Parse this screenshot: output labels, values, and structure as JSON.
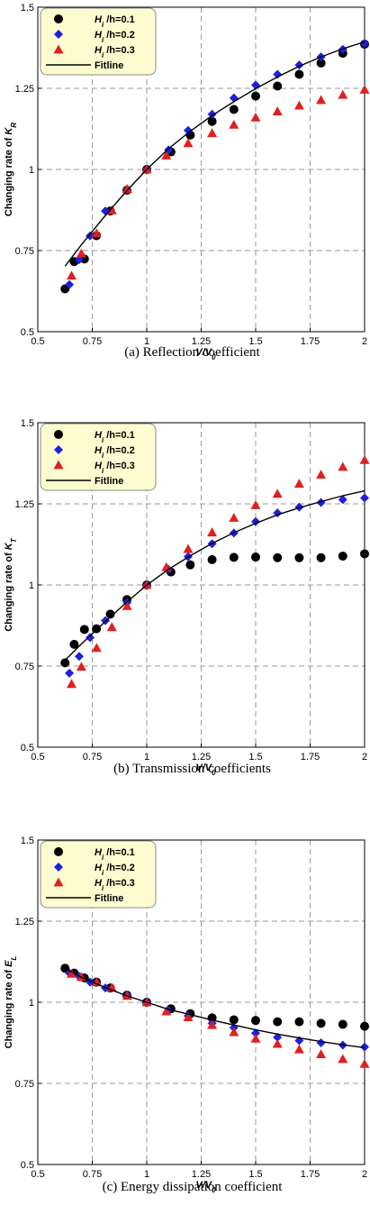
{
  "chart_data": [
    {
      "type": "scatter",
      "caption": "(a)  Reflection  coefficient",
      "ylabel": "Changing rate of K_R",
      "ylabel_main": "Changing rate of ",
      "ylabel_sym": "K",
      "ylabel_sub": "R",
      "xlabel_main": "V/V",
      "xlabel_sub": "0",
      "xlim": [
        0.5,
        2
      ],
      "ylim": [
        0.5,
        1.5
      ],
      "x_ticks": [
        "0.5",
        "0.75",
        "1",
        "1.25",
        "1.5",
        "1.75",
        "2"
      ],
      "y_ticks": [
        "0.5",
        "0.75",
        "1",
        "1.25",
        "1.5"
      ],
      "grid": true,
      "legend_position": "top-left",
      "legend": [
        {
          "label_pre": "H",
          "label_sub": "i",
          "label_post": " /h=0.1",
          "marker": "circle",
          "color": "#000000"
        },
        {
          "label_pre": "H",
          "label_sub": "i",
          "label_post": " /h=0.2",
          "marker": "diamond",
          "color": "#1f1fe0"
        },
        {
          "label_pre": "H",
          "label_sub": "i",
          "label_post": " /h=0.3",
          "marker": "triangle",
          "color": "#e02020"
        },
        {
          "label_pre": "Fitline",
          "label_sub": "",
          "label_post": "",
          "marker": "line",
          "color": "#000000"
        }
      ],
      "series": [
        {
          "name": "Hi/h=0.1",
          "marker": "circle",
          "color": "#000000",
          "x": [
            0.625,
            0.667,
            0.714,
            0.769,
            0.833,
            0.909,
            1.0,
            1.111,
            1.2,
            1.3,
            1.4,
            1.5,
            1.6,
            1.7,
            1.8,
            1.9,
            2.0
          ],
          "y": [
            0.632,
            0.716,
            0.724,
            0.796,
            0.872,
            0.936,
            1.0,
            1.054,
            1.106,
            1.148,
            1.185,
            1.226,
            1.257,
            1.293,
            1.328,
            1.358,
            1.386
          ]
        },
        {
          "name": "Hi/h=0.2",
          "marker": "diamond",
          "color": "#1f1fe0",
          "x": [
            0.645,
            0.69,
            0.74,
            0.81,
            0.91,
            1.0,
            1.1,
            1.19,
            1.3,
            1.4,
            1.5,
            1.6,
            1.7,
            1.8,
            1.9,
            2.0
          ],
          "y": [
            0.645,
            0.722,
            0.795,
            0.872,
            0.938,
            1.0,
            1.06,
            1.12,
            1.17,
            1.22,
            1.26,
            1.293,
            1.322,
            1.347,
            1.37,
            1.388
          ]
        },
        {
          "name": "Hi/h=0.3",
          "marker": "triangle",
          "color": "#e02020",
          "x": [
            0.655,
            0.7,
            0.77,
            0.84,
            0.91,
            1.0,
            1.09,
            1.19,
            1.3,
            1.4,
            1.5,
            1.6,
            1.7,
            1.8,
            1.9,
            2.0
          ],
          "y": [
            0.673,
            0.741,
            0.803,
            0.874,
            0.94,
            1.0,
            1.043,
            1.081,
            1.112,
            1.138,
            1.16,
            1.179,
            1.197,
            1.214,
            1.23,
            1.246
          ]
        },
        {
          "name": "Fitline",
          "marker": "line",
          "color": "#000000",
          "x": [
            0.625,
            0.7,
            0.8,
            0.9,
            1.0,
            1.1,
            1.2,
            1.3,
            1.4,
            1.5,
            1.6,
            1.7,
            1.8,
            1.9,
            2.0
          ],
          "y": [
            0.702,
            0.768,
            0.85,
            0.928,
            1.0,
            1.064,
            1.118,
            1.166,
            1.209,
            1.249,
            1.285,
            1.318,
            1.347,
            1.372,
            1.393
          ]
        }
      ]
    },
    {
      "type": "scatter",
      "caption": "(b)  Transmission  coefficients",
      "ylabel": "Changing rate of K_T",
      "ylabel_main": "Changing rate of ",
      "ylabel_sym": "K",
      "ylabel_sub": "T",
      "xlabel_main": "V/V",
      "xlabel_sub": "0",
      "xlim": [
        0.5,
        2
      ],
      "ylim": [
        0.5,
        1.5
      ],
      "x_ticks": [
        "0.5",
        "0.75",
        "1",
        "1.25",
        "1.5",
        "1.75",
        "2"
      ],
      "y_ticks": [
        "0.5",
        "0.75",
        "1",
        "1.25",
        "1.5"
      ],
      "grid": true,
      "legend_position": "top-left",
      "legend": [
        {
          "label_pre": "H",
          "label_sub": "i",
          "label_post": " /h=0.1",
          "marker": "circle",
          "color": "#000000"
        },
        {
          "label_pre": "H",
          "label_sub": "i",
          "label_post": " /h=0.2",
          "marker": "diamond",
          "color": "#1f1fe0"
        },
        {
          "label_pre": "H",
          "label_sub": "i",
          "label_post": " /h=0.3",
          "marker": "triangle",
          "color": "#e02020"
        },
        {
          "label_pre": "Fitline",
          "label_sub": "",
          "label_post": "",
          "marker": "line",
          "color": "#000000"
        }
      ],
      "series": [
        {
          "name": "Hi/h=0.1",
          "marker": "circle",
          "color": "#000000",
          "x": [
            0.625,
            0.667,
            0.714,
            0.769,
            0.833,
            0.909,
            1.0,
            1.111,
            1.2,
            1.3,
            1.4,
            1.5,
            1.6,
            1.7,
            1.8,
            1.9,
            2.0
          ],
          "y": [
            0.76,
            0.817,
            0.863,
            0.865,
            0.91,
            0.955,
            1.0,
            1.04,
            1.062,
            1.078,
            1.085,
            1.086,
            1.084,
            1.084,
            1.084,
            1.089,
            1.096
          ]
        },
        {
          "name": "Hi/h=0.2",
          "marker": "diamond",
          "color": "#1f1fe0",
          "x": [
            0.645,
            0.69,
            0.74,
            0.81,
            0.91,
            1.0,
            1.1,
            1.19,
            1.3,
            1.4,
            1.5,
            1.6,
            1.7,
            1.8,
            1.9,
            2.0
          ],
          "y": [
            0.728,
            0.78,
            0.838,
            0.89,
            0.946,
            1.0,
            1.048,
            1.087,
            1.127,
            1.16,
            1.195,
            1.222,
            1.24,
            1.254,
            1.263,
            1.268
          ]
        },
        {
          "name": "Hi/h=0.3",
          "marker": "triangle",
          "color": "#e02020",
          "x": [
            0.655,
            0.7,
            0.77,
            0.84,
            0.91,
            1.0,
            1.09,
            1.19,
            1.3,
            1.4,
            1.5,
            1.6,
            1.7,
            1.8,
            1.9,
            2.0
          ],
          "y": [
            0.695,
            0.748,
            0.806,
            0.87,
            0.935,
            1.0,
            1.055,
            1.111,
            1.162,
            1.207,
            1.246,
            1.281,
            1.312,
            1.34,
            1.364,
            1.385
          ]
        },
        {
          "name": "Fitline",
          "marker": "line",
          "color": "#000000",
          "x": [
            0.625,
            0.7,
            0.8,
            0.9,
            1.0,
            1.1,
            1.2,
            1.3,
            1.4,
            1.5,
            1.6,
            1.7,
            1.8,
            1.9,
            2.0
          ],
          "y": [
            0.768,
            0.818,
            0.881,
            0.942,
            1.0,
            1.048,
            1.09,
            1.128,
            1.161,
            1.19,
            1.216,
            1.238,
            1.257,
            1.275,
            1.29
          ]
        }
      ]
    },
    {
      "type": "scatter",
      "caption": "(c)  Energy  dissipation  coefficient",
      "ylabel": "Changing rate of E_L",
      "ylabel_main": "Changing rate of ",
      "ylabel_sym": "E",
      "ylabel_sub": "L",
      "xlabel_main": "V/V",
      "xlabel_sub": "0",
      "xlim": [
        0.5,
        2
      ],
      "ylim": [
        0.5,
        1.5
      ],
      "x_ticks": [
        "0.5",
        "0.75",
        "1",
        "1.25",
        "1.5",
        "1.75",
        "2"
      ],
      "y_ticks": [
        "0.5",
        "0.75",
        "1",
        "1.25",
        "1.5"
      ],
      "grid": true,
      "legend_position": "top-left",
      "legend": [
        {
          "label_pre": "H",
          "label_sub": "i",
          "label_post": " /h=0.1",
          "marker": "circle",
          "color": "#000000"
        },
        {
          "label_pre": "H",
          "label_sub": "i",
          "label_post": " /h=0.2",
          "marker": "diamond",
          "color": "#1f1fe0"
        },
        {
          "label_pre": "H",
          "label_sub": "i",
          "label_post": " /h=0.3",
          "marker": "triangle",
          "color": "#e02020"
        },
        {
          "label_pre": "Fitline",
          "label_sub": "",
          "label_post": "",
          "marker": "line",
          "color": "#000000"
        }
      ],
      "series": [
        {
          "name": "Hi/h=0.1",
          "marker": "circle",
          "color": "#000000",
          "x": [
            0.625,
            0.667,
            0.714,
            0.769,
            0.833,
            0.909,
            1.0,
            1.111,
            1.2,
            1.3,
            1.4,
            1.5,
            1.6,
            1.7,
            1.8,
            1.9,
            2.0
          ],
          "y": [
            1.105,
            1.09,
            1.075,
            1.062,
            1.044,
            1.022,
            1.0,
            0.98,
            0.965,
            0.952,
            0.946,
            0.944,
            0.94,
            0.94,
            0.935,
            0.932,
            0.926
          ]
        },
        {
          "name": "Hi/h=0.2",
          "marker": "diamond",
          "color": "#1f1fe0",
          "x": [
            0.645,
            0.69,
            0.74,
            0.81,
            0.91,
            1.0,
            1.1,
            1.19,
            1.3,
            1.4,
            1.5,
            1.6,
            1.7,
            1.8,
            1.9,
            2.0
          ],
          "y": [
            1.09,
            1.08,
            1.062,
            1.044,
            1.022,
            1.0,
            0.975,
            0.958,
            0.935,
            0.922,
            0.905,
            0.892,
            0.882,
            0.875,
            0.868,
            0.862
          ]
        },
        {
          "name": "Hi/h=0.3",
          "marker": "triangle",
          "color": "#e02020",
          "x": [
            0.655,
            0.7,
            0.77,
            0.84,
            0.91,
            1.0,
            1.09,
            1.19,
            1.3,
            1.4,
            1.5,
            1.6,
            1.7,
            1.8,
            1.9,
            2.0
          ],
          "y": [
            1.088,
            1.078,
            1.062,
            1.045,
            1.02,
            1.0,
            0.972,
            0.954,
            0.93,
            0.908,
            0.888,
            0.872,
            0.855,
            0.84,
            0.825,
            0.81
          ]
        },
        {
          "name": "Fitline",
          "marker": "line",
          "color": "#000000",
          "x": [
            0.625,
            0.7,
            0.8,
            0.9,
            1.0,
            1.1,
            1.2,
            1.3,
            1.4,
            1.5,
            1.6,
            1.7,
            1.8,
            1.9,
            2.0
          ],
          "y": [
            1.105,
            1.077,
            1.048,
            1.022,
            1.0,
            0.978,
            0.962,
            0.945,
            0.93,
            0.915,
            0.902,
            0.89,
            0.879,
            0.869,
            0.86
          ]
        }
      ]
    }
  ]
}
